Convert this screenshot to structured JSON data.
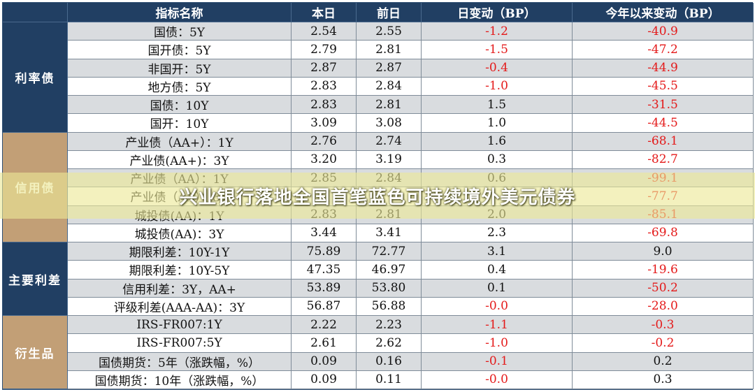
{
  "header": {
    "name": "指标名称",
    "today": "本日",
    "prev": "前日",
    "daily": "日变动（BP）",
    "ytd": "今年以来变动（BP）"
  },
  "groups": [
    {
      "label": "利率债",
      "color": "#213f63",
      "rows": 6
    },
    {
      "label": "信用债",
      "color": "#c29f76",
      "rows": 6
    },
    {
      "label": "主要利差",
      "color": "#213f63",
      "rows": 4
    },
    {
      "label": "衍生品",
      "color": "#c29f76",
      "rows": 4
    }
  ],
  "rows": [
    {
      "name": "国债：5Y",
      "today": "2.54",
      "prev": "2.55",
      "daily": "-1.2",
      "ytd": "-40.9"
    },
    {
      "name": "国开债：5Y",
      "today": "2.79",
      "prev": "2.81",
      "daily": "-1.5",
      "ytd": "-47.2"
    },
    {
      "name": "非国开：5Y",
      "today": "2.87",
      "prev": "2.87",
      "daily": "-0.4",
      "ytd": "-44.9"
    },
    {
      "name": "地方债：5Y",
      "today": "2.83",
      "prev": "2.84",
      "daily": "-1.0",
      "ytd": "-45.5"
    },
    {
      "name": "国债：10Y",
      "today": "2.83",
      "prev": "2.81",
      "daily": "1.5",
      "ytd": "-31.5"
    },
    {
      "name": "国开：10Y",
      "today": "3.09",
      "prev": "3.08",
      "daily": "1.0",
      "ytd": "-44.5"
    },
    {
      "name": "产业债（AA+）：1Y",
      "today": "2.76",
      "prev": "2.74",
      "daily": "1.6",
      "ytd": "-68.1"
    },
    {
      "name": "产业债(AA+)：3Y",
      "today": "3.20",
      "prev": "3.19",
      "daily": "0.3",
      "ytd": "-82.7"
    },
    {
      "name": "产业债（AA）：1Y",
      "today": "2.85",
      "prev": "2.84",
      "daily": "0.6",
      "ytd": "-99.1"
    },
    {
      "name": "产业债（AA）：3Y",
      "today": "",
      "prev": "",
      "daily": "",
      "ytd": "-77.7"
    },
    {
      "name": "城投债(AA)：1Y",
      "today": "2.83",
      "prev": "2.81",
      "daily": "2.0",
      "ytd": "-85.1"
    },
    {
      "name": "城投债(AA)：3Y",
      "today": "3.44",
      "prev": "3.41",
      "daily": "2.3",
      "ytd": "-69.8"
    },
    {
      "name": "期限利差：10Y-1Y",
      "today": "75.89",
      "prev": "72.77",
      "daily": "3.1",
      "ytd": "9.0"
    },
    {
      "name": "期限利差：10Y-5Y",
      "today": "47.35",
      "prev": "46.97",
      "daily": "0.4",
      "ytd": "-19.6"
    },
    {
      "name": "信用利差：3Y，AA+",
      "today": "53.89",
      "prev": "53.80",
      "daily": "0.1",
      "ytd": "-50.2"
    },
    {
      "name": "评级利差(AAA-AA)：3Y",
      "today": "56.87",
      "prev": "56.88",
      "daily": "-0.0",
      "ytd": "-28.0"
    },
    {
      "name": "IRS-FR007:1Y",
      "today": "2.22",
      "prev": "2.23",
      "daily": "-1.1",
      "ytd": "-0.3"
    },
    {
      "name": "IRS-FR007:5Y",
      "today": "2.61",
      "prev": "2.62",
      "daily": "-1.0",
      "ytd": "-0.2"
    },
    {
      "name": "国债期货：5年（涨跌幅，%）",
      "today": "0.09",
      "prev": "0.16",
      "daily": "-0.1",
      "ytd": "0.2"
    },
    {
      "name": "国债期货：10年（涨跌幅，%）",
      "today": "0.09",
      "prev": "0.11",
      "daily": "-0.0",
      "ytd": "0.3"
    }
  ],
  "banner": {
    "text": "兴业银行落地全国首笔蓝色可持续境外美元债券"
  },
  "colors": {
    "header_bg": "#213f63",
    "tan": "#c29f76",
    "negative": "#e41a1a",
    "row_gray": "#d9dcdf"
  }
}
